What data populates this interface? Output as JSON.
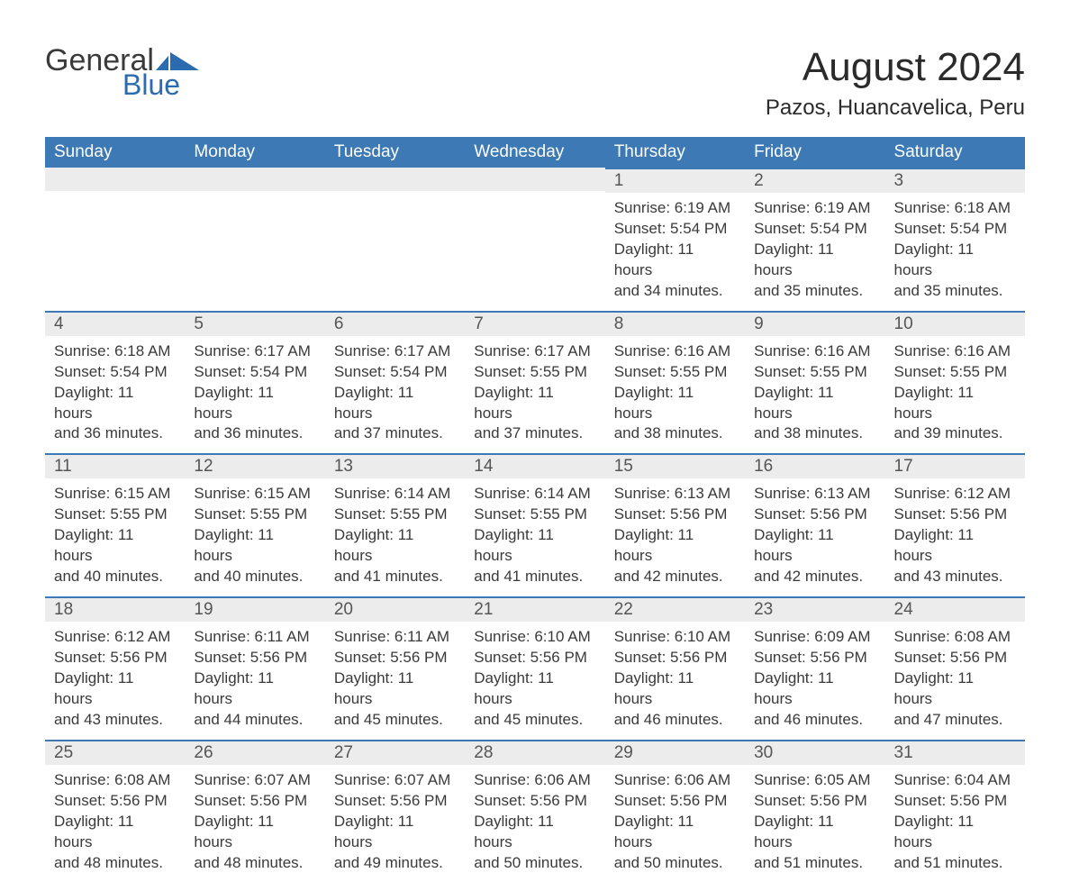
{
  "logo": {
    "word1": "General",
    "word2": "Blue",
    "accent_color": "#2b6cb0"
  },
  "title": "August 2024",
  "subtitle": "Pazos, Huancavelica, Peru",
  "colors": {
    "header_bg": "#3c79b5",
    "header_fg": "#ffffff",
    "daynum_bg": "#ececec",
    "daynum_fg": "#555555",
    "body_fg": "#3a3a3a",
    "rule": "#3c79b5",
    "page_bg": "#ffffff"
  },
  "typography": {
    "title_fontsize": 44,
    "subtitle_fontsize": 24,
    "dayheader_fontsize": 19,
    "daynum_fontsize": 19,
    "body_fontsize": 17
  },
  "dayHeaders": [
    "Sunday",
    "Monday",
    "Tuesday",
    "Wednesday",
    "Thursday",
    "Friday",
    "Saturday"
  ],
  "weeks": [
    [
      null,
      null,
      null,
      null,
      {
        "n": "1",
        "sr": "Sunrise: 6:19 AM",
        "ss": "Sunset: 5:54 PM",
        "d1": "Daylight: 11 hours",
        "d2": "and 34 minutes."
      },
      {
        "n": "2",
        "sr": "Sunrise: 6:19 AM",
        "ss": "Sunset: 5:54 PM",
        "d1": "Daylight: 11 hours",
        "d2": "and 35 minutes."
      },
      {
        "n": "3",
        "sr": "Sunrise: 6:18 AM",
        "ss": "Sunset: 5:54 PM",
        "d1": "Daylight: 11 hours",
        "d2": "and 35 minutes."
      }
    ],
    [
      {
        "n": "4",
        "sr": "Sunrise: 6:18 AM",
        "ss": "Sunset: 5:54 PM",
        "d1": "Daylight: 11 hours",
        "d2": "and 36 minutes."
      },
      {
        "n": "5",
        "sr": "Sunrise: 6:17 AM",
        "ss": "Sunset: 5:54 PM",
        "d1": "Daylight: 11 hours",
        "d2": "and 36 minutes."
      },
      {
        "n": "6",
        "sr": "Sunrise: 6:17 AM",
        "ss": "Sunset: 5:54 PM",
        "d1": "Daylight: 11 hours",
        "d2": "and 37 minutes."
      },
      {
        "n": "7",
        "sr": "Sunrise: 6:17 AM",
        "ss": "Sunset: 5:55 PM",
        "d1": "Daylight: 11 hours",
        "d2": "and 37 minutes."
      },
      {
        "n": "8",
        "sr": "Sunrise: 6:16 AM",
        "ss": "Sunset: 5:55 PM",
        "d1": "Daylight: 11 hours",
        "d2": "and 38 minutes."
      },
      {
        "n": "9",
        "sr": "Sunrise: 6:16 AM",
        "ss": "Sunset: 5:55 PM",
        "d1": "Daylight: 11 hours",
        "d2": "and 38 minutes."
      },
      {
        "n": "10",
        "sr": "Sunrise: 6:16 AM",
        "ss": "Sunset: 5:55 PM",
        "d1": "Daylight: 11 hours",
        "d2": "and 39 minutes."
      }
    ],
    [
      {
        "n": "11",
        "sr": "Sunrise: 6:15 AM",
        "ss": "Sunset: 5:55 PM",
        "d1": "Daylight: 11 hours",
        "d2": "and 40 minutes."
      },
      {
        "n": "12",
        "sr": "Sunrise: 6:15 AM",
        "ss": "Sunset: 5:55 PM",
        "d1": "Daylight: 11 hours",
        "d2": "and 40 minutes."
      },
      {
        "n": "13",
        "sr": "Sunrise: 6:14 AM",
        "ss": "Sunset: 5:55 PM",
        "d1": "Daylight: 11 hours",
        "d2": "and 41 minutes."
      },
      {
        "n": "14",
        "sr": "Sunrise: 6:14 AM",
        "ss": "Sunset: 5:55 PM",
        "d1": "Daylight: 11 hours",
        "d2": "and 41 minutes."
      },
      {
        "n": "15",
        "sr": "Sunrise: 6:13 AM",
        "ss": "Sunset: 5:56 PM",
        "d1": "Daylight: 11 hours",
        "d2": "and 42 minutes."
      },
      {
        "n": "16",
        "sr": "Sunrise: 6:13 AM",
        "ss": "Sunset: 5:56 PM",
        "d1": "Daylight: 11 hours",
        "d2": "and 42 minutes."
      },
      {
        "n": "17",
        "sr": "Sunrise: 6:12 AM",
        "ss": "Sunset: 5:56 PM",
        "d1": "Daylight: 11 hours",
        "d2": "and 43 minutes."
      }
    ],
    [
      {
        "n": "18",
        "sr": "Sunrise: 6:12 AM",
        "ss": "Sunset: 5:56 PM",
        "d1": "Daylight: 11 hours",
        "d2": "and 43 minutes."
      },
      {
        "n": "19",
        "sr": "Sunrise: 6:11 AM",
        "ss": "Sunset: 5:56 PM",
        "d1": "Daylight: 11 hours",
        "d2": "and 44 minutes."
      },
      {
        "n": "20",
        "sr": "Sunrise: 6:11 AM",
        "ss": "Sunset: 5:56 PM",
        "d1": "Daylight: 11 hours",
        "d2": "and 45 minutes."
      },
      {
        "n": "21",
        "sr": "Sunrise: 6:10 AM",
        "ss": "Sunset: 5:56 PM",
        "d1": "Daylight: 11 hours",
        "d2": "and 45 minutes."
      },
      {
        "n": "22",
        "sr": "Sunrise: 6:10 AM",
        "ss": "Sunset: 5:56 PM",
        "d1": "Daylight: 11 hours",
        "d2": "and 46 minutes."
      },
      {
        "n": "23",
        "sr": "Sunrise: 6:09 AM",
        "ss": "Sunset: 5:56 PM",
        "d1": "Daylight: 11 hours",
        "d2": "and 46 minutes."
      },
      {
        "n": "24",
        "sr": "Sunrise: 6:08 AM",
        "ss": "Sunset: 5:56 PM",
        "d1": "Daylight: 11 hours",
        "d2": "and 47 minutes."
      }
    ],
    [
      {
        "n": "25",
        "sr": "Sunrise: 6:08 AM",
        "ss": "Sunset: 5:56 PM",
        "d1": "Daylight: 11 hours",
        "d2": "and 48 minutes."
      },
      {
        "n": "26",
        "sr": "Sunrise: 6:07 AM",
        "ss": "Sunset: 5:56 PM",
        "d1": "Daylight: 11 hours",
        "d2": "and 48 minutes."
      },
      {
        "n": "27",
        "sr": "Sunrise: 6:07 AM",
        "ss": "Sunset: 5:56 PM",
        "d1": "Daylight: 11 hours",
        "d2": "and 49 minutes."
      },
      {
        "n": "28",
        "sr": "Sunrise: 6:06 AM",
        "ss": "Sunset: 5:56 PM",
        "d1": "Daylight: 11 hours",
        "d2": "and 50 minutes."
      },
      {
        "n": "29",
        "sr": "Sunrise: 6:06 AM",
        "ss": "Sunset: 5:56 PM",
        "d1": "Daylight: 11 hours",
        "d2": "and 50 minutes."
      },
      {
        "n": "30",
        "sr": "Sunrise: 6:05 AM",
        "ss": "Sunset: 5:56 PM",
        "d1": "Daylight: 11 hours",
        "d2": "and 51 minutes."
      },
      {
        "n": "31",
        "sr": "Sunrise: 6:04 AM",
        "ss": "Sunset: 5:56 PM",
        "d1": "Daylight: 11 hours",
        "d2": "and 51 minutes."
      }
    ]
  ]
}
